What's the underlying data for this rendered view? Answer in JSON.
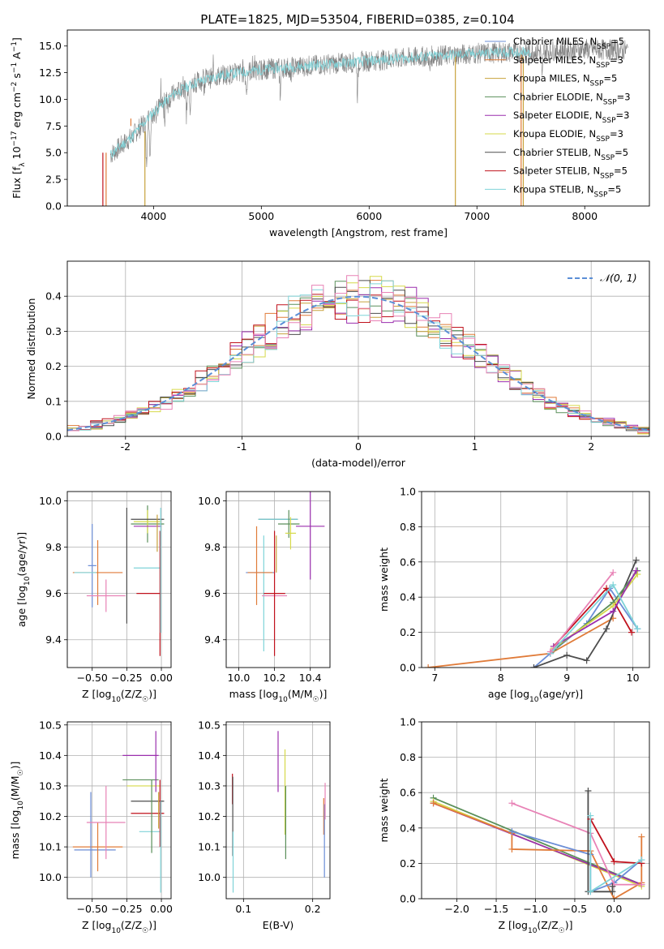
{
  "figure_title": "PLATE=1825, MJD=53504, FIBERID=0385, z=0.104",
  "colors": {
    "Chabrier MILES": "#6b8dd6",
    "Salpeter MILES": "#e07b39",
    "Kroupa MILES": "#c8a23c",
    "Chabrier ELODIE": "#5a8f5a",
    "Salpeter ELODIE": "#9b2fae",
    "Kroupa ELODIE": "#d6d94a",
    "Chabrier STELIB": "#4d4d4d",
    "Salpeter STELIB": "#c0121d",
    "Kroupa STELIB": "#7fd3d8",
    "pink": "#e882b6",
    "data": "#808080",
    "normal": "#5b8fd6"
  },
  "chart_data": [
    {
      "type": "line",
      "title": "PLATE=1825, MJD=53504, FIBERID=0385, z=0.104",
      "xlabel": "wavelength [Angstrom, rest frame]",
      "ylabel": "Flux [f_λ 10^-17 erg cm^-2 s^-1 A^-1]",
      "xlim": [
        3200,
        8600
      ],
      "ylim": [
        0,
        16.5
      ],
      "xticks": [
        4000,
        5000,
        6000,
        7000,
        8000
      ],
      "yticks": [
        0.0,
        2.5,
        5.0,
        7.5,
        10.0,
        12.5,
        15.0
      ],
      "legend_position": "right",
      "legend": [
        "Chabrier MILES, N_SSP=5",
        "Salpeter MILES, N_SSP=3",
        "Kroupa MILES, N_SSP=5",
        "Chabrier ELODIE, N_SSP=3",
        "Salpeter ELODIE, N_SSP=3",
        "Kroupa ELODIE, N_SSP=3",
        "Chabrier STELIB, N_SSP=5",
        "Salpeter STELIB, N_SSP=5",
        "Kroupa STELIB, N_SSP=5"
      ],
      "spectrum_continuum": {
        "wavelength": [
          3600,
          3800,
          4000,
          4200,
          4400,
          4600,
          4800,
          5000,
          5500,
          6000,
          6500,
          7000,
          7500,
          8000,
          8400
        ],
        "flux": [
          4.8,
          6.5,
          8.8,
          10.6,
          11.6,
          12.2,
          12.5,
          12.8,
          13.2,
          13.6,
          14.0,
          14.3,
          14.5,
          14.7,
          14.6
        ]
      }
    },
    {
      "type": "histogram",
      "xlabel": "(data-model)/error",
      "ylabel": "Normed distribution",
      "xlim": [
        -2.5,
        2.5
      ],
      "ylim": [
        0,
        0.5
      ],
      "xticks": [
        -2,
        -1,
        0,
        1,
        2
      ],
      "yticks": [
        0.0,
        0.1,
        0.2,
        0.3,
        0.4
      ],
      "legend_position": "top-right",
      "legend": [
        "N(0,1)"
      ],
      "bin_edges": [
        -2.5,
        -2.4,
        -2.3,
        -2.2,
        -2.1,
        -2.0,
        -1.9,
        -1.8,
        -1.7,
        -1.6,
        -1.5,
        -1.4,
        -1.3,
        -1.2,
        -1.1,
        -1.0,
        -0.9,
        -0.8,
        -0.7,
        -0.6,
        -0.5,
        -0.4,
        -0.3,
        -0.2,
        -0.1,
        0.0,
        0.1,
        0.2,
        0.3,
        0.4,
        0.5,
        0.6,
        0.7,
        0.8,
        0.9,
        1.0,
        1.1,
        1.2,
        1.3,
        1.4,
        1.5,
        1.6,
        1.7,
        1.8,
        1.9,
        2.0,
        2.1,
        2.2,
        2.3,
        2.4,
        2.5
      ]
    },
    {
      "type": "errorbar",
      "xlabel": "Z [log10(Z/Z☉)]",
      "ylabel": "age [log10(age/yr)]",
      "xlim": [
        -0.68,
        0.07
      ],
      "ylim": [
        9.28,
        10.04
      ],
      "xticks": [
        -0.5,
        -0.25,
        0.0
      ],
      "xtick_labels": [
        "−0.50",
        "−0.25",
        "0.00"
      ],
      "yticks": [
        9.4,
        9.6,
        9.8,
        10.0
      ],
      "points": [
        {
          "series": "Chabrier MILES",
          "x": -0.5,
          "xerr": 0.03,
          "y": 9.72,
          "yerr": 0.18
        },
        {
          "series": "Salpeter MILES",
          "x": -0.46,
          "xerr": 0.18,
          "y": 9.69,
          "yerr": 0.14
        },
        {
          "series": "Kroupa STELIB",
          "x": -0.55,
          "xerr": 0.08,
          "y": 9.69,
          "yerr": 0.0
        },
        {
          "series": "pink",
          "x": -0.4,
          "xerr": 0.14,
          "y": 9.59,
          "yerr": 0.07
        },
        {
          "series": "Chabrier STELIB",
          "x": -0.25,
          "xerr": 0.0,
          "y": 9.72,
          "yerr": 0.25
        },
        {
          "series": "Chabrier ELODIE",
          "x": -0.1,
          "xerr": 0.12,
          "y": 9.9,
          "yerr": 0.08
        },
        {
          "series": "Kroupa ELODIE",
          "x": -0.1,
          "xerr": 0.1,
          "y": 9.91,
          "yerr": 0.05
        },
        {
          "series": "Chabrier STELIB",
          "x": -0.1,
          "xerr": 0.12,
          "y": 9.92,
          "yerr": 0.0
        },
        {
          "series": "Salpeter ELODIE",
          "x": -0.1,
          "xerr": 0.1,
          "y": 9.89,
          "yerr": 0.0
        },
        {
          "series": "Kroupa STELIB",
          "x": -0.1,
          "xerr": 0.1,
          "y": 9.71,
          "yerr": 0.0
        },
        {
          "series": "Salpeter STELIB",
          "x": -0.09,
          "xerr": 0.09,
          "y": 9.6,
          "yerr": 0.0
        },
        {
          "series": "Kroupa MILES",
          "x": -0.03,
          "xerr": 0.0,
          "y": 9.86,
          "yerr": 0.08
        },
        {
          "series": "Salpeter STELIB",
          "x": -0.01,
          "xerr": 0.0,
          "y": 9.6,
          "yerr": 0.27
        },
        {
          "series": "Kroupa STELIB",
          "x": -0.005,
          "xerr": 0.0,
          "y": 9.7,
          "yerr": 0.27
        }
      ]
    },
    {
      "type": "errorbar",
      "xlabel": "mass [log10(M/M☉)]",
      "ylabel": "",
      "xlim": [
        9.93,
        10.51
      ],
      "ylim": [
        9.28,
        10.04
      ],
      "xticks": [
        10.0,
        10.2,
        10.4
      ],
      "xtick_labels": [
        "10.0",
        "10.2",
        "10.4"
      ],
      "yticks": [
        9.4,
        9.6,
        9.8,
        10.0
      ],
      "points": [
        {
          "series": "Kroupa STELIB",
          "x": 10.08,
          "xerr": 0.0,
          "y": 9.72,
          "yerr": 0.0
        },
        {
          "series": "Kroupa STELIB",
          "x": 10.14,
          "xerr": 0.0,
          "y": 9.6,
          "yerr": 0.25
        },
        {
          "series": "Salpeter MILES",
          "x": 10.1,
          "xerr": 0.0,
          "y": 9.72,
          "yerr": 0.17
        },
        {
          "series": "Chabrier MILES",
          "x": 10.12,
          "xerr": 0.08,
          "y": 9.69,
          "yerr": 0.0
        },
        {
          "series": "Salpeter MILES",
          "x": 10.12,
          "xerr": 0.07,
          "y": 9.69,
          "yerr": 0.0
        },
        {
          "series": "pink",
          "x": 10.2,
          "xerr": 0.07,
          "y": 9.59,
          "yerr": 0.0
        },
        {
          "series": "Salpeter STELIB",
          "x": 10.2,
          "xerr": 0.06,
          "y": 9.6,
          "yerr": 0.27
        },
        {
          "series": "Kroupa MILES",
          "x": 10.21,
          "xerr": 0.0,
          "y": 9.77,
          "yerr": 0.08
        },
        {
          "series": "Chabrier STELIB",
          "x": 10.22,
          "xerr": 0.11,
          "y": 9.92,
          "yerr": 0.0
        },
        {
          "series": "Kroupa STELIB",
          "x": 10.22,
          "xerr": 0.11,
          "y": 9.92,
          "yerr": 0.0
        },
        {
          "series": "Chabrier ELODIE",
          "x": 10.28,
          "xerr": 0.06,
          "y": 9.9,
          "yerr": 0.06
        },
        {
          "series": "Kroupa ELODIE",
          "x": 10.29,
          "xerr": 0.03,
          "y": 9.86,
          "yerr": 0.07
        },
        {
          "series": "Salpeter ELODIE",
          "x": 10.4,
          "xerr": 0.08,
          "y": 9.89,
          "yerr": 0.23
        }
      ]
    },
    {
      "type": "line",
      "xlabel": "age  [log10(age/yr)]",
      "ylabel": "mass weight",
      "xlim": [
        6.8,
        10.25
      ],
      "ylim": [
        0,
        1.0
      ],
      "xticks": [
        7,
        8,
        9,
        10
      ],
      "yticks": [
        0.0,
        0.2,
        0.4,
        0.6,
        0.8,
        1.0
      ],
      "series": [
        {
          "name": "Salpeter MILES",
          "x": [
            6.9,
            8.75,
            9.7
          ],
          "y": [
            0.0,
            0.08,
            0.28
          ]
        },
        {
          "name": "Chabrier MILES",
          "x": [
            8.5,
            8.75,
            9.3,
            9.65,
            10.07
          ],
          "y": [
            0.0,
            0.08,
            0.25,
            0.45,
            0.22
          ]
        },
        {
          "name": "Chabrier STELIB",
          "x": [
            8.5,
            9.0,
            9.3,
            9.6,
            10.05
          ],
          "y": [
            0.0,
            0.07,
            0.04,
            0.22,
            0.61
          ]
        },
        {
          "name": "Salpeter STELIB",
          "x": [
            8.8,
            9.6,
            9.98
          ],
          "y": [
            0.12,
            0.45,
            0.2
          ]
        },
        {
          "name": "Chabrier ELODIE",
          "x": [
            8.8,
            9.7,
            10.07
          ],
          "y": [
            0.1,
            0.37,
            0.55
          ]
        },
        {
          "name": "Kroupa ELODIE",
          "x": [
            8.8,
            9.7,
            10.07
          ],
          "y": [
            0.11,
            0.35,
            0.53
          ]
        },
        {
          "name": "Salpeter ELODIE",
          "x": [
            8.8,
            9.7,
            10.05
          ],
          "y": [
            0.12,
            0.32,
            0.55
          ]
        },
        {
          "name": "Kroupa STELIB",
          "x": [
            8.75,
            9.7,
            10.07
          ],
          "y": [
            0.08,
            0.47,
            0.22
          ]
        },
        {
          "name": "pink",
          "x": [
            8.75,
            9.7
          ],
          "y": [
            0.09,
            0.54
          ]
        }
      ]
    },
    {
      "type": "errorbar",
      "xlabel": "Z [log10(Z/Z☉)]",
      "ylabel": "mass [log10(M/M☉)]",
      "xlim": [
        -0.68,
        0.07
      ],
      "ylim": [
        9.93,
        10.51
      ],
      "xticks": [
        -0.5,
        -0.25,
        0.0
      ],
      "xtick_labels": [
        "−0.50",
        "−0.25",
        "0.00"
      ],
      "yticks": [
        10.0,
        10.1,
        10.2,
        10.3,
        10.4,
        10.5
      ],
      "points": [
        {
          "series": "Chabrier MILES",
          "x": -0.48,
          "xerr": 0.15,
          "y": 10.09,
          "yerr": 0.0
        },
        {
          "series": "Salpeter MILES",
          "x": -0.46,
          "xerr": 0.18,
          "y": 10.1,
          "yerr": 0.08
        },
        {
          "series": "Chabrier MILES",
          "x": -0.51,
          "xerr": 0.0,
          "y": 10.14,
          "yerr": 0.14
        },
        {
          "series": "pink",
          "x": -0.4,
          "xerr": 0.14,
          "y": 10.18,
          "yerr": 0.12
        },
        {
          "series": "Salpeter ELODIE",
          "x": -0.15,
          "xerr": 0.13,
          "y": 10.4,
          "yerr": 0.0
        },
        {
          "series": "Chabrier ELODIE",
          "x": -0.15,
          "xerr": 0.13,
          "y": 10.32,
          "yerr": 0.0
        },
        {
          "series": "Kroupa ELODIE",
          "x": -0.13,
          "xerr": 0.12,
          "y": 10.3,
          "yerr": 0.0
        },
        {
          "series": "Chabrier STELIB",
          "x": -0.1,
          "xerr": 0.12,
          "y": 10.25,
          "yerr": 0.0
        },
        {
          "series": "Salpeter STELIB",
          "x": -0.1,
          "xerr": 0.12,
          "y": 10.21,
          "yerr": 0.0
        },
        {
          "series": "Kroupa STELIB",
          "x": -0.08,
          "xerr": 0.08,
          "y": 10.15,
          "yerr": 0.0
        },
        {
          "series": "Chabrier ELODIE",
          "x": -0.07,
          "xerr": 0.0,
          "y": 10.2,
          "yerr": 0.12
        },
        {
          "series": "Salpeter ELODIE",
          "x": -0.04,
          "xerr": 0.0,
          "y": 10.38,
          "yerr": 0.1
        },
        {
          "series": "Kroupa MILES",
          "x": -0.02,
          "xerr": 0.0,
          "y": 10.22,
          "yerr": 0.06
        },
        {
          "series": "Salpeter STELIB",
          "x": -0.01,
          "xerr": 0.0,
          "y": 10.21,
          "yerr": 0.11
        },
        {
          "series": "Kroupa STELIB",
          "x": -0.005,
          "xerr": 0.0,
          "y": 10.1,
          "yerr": 0.15
        }
      ]
    },
    {
      "type": "errorbar",
      "xlabel": "E(B-V)",
      "ylabel": "",
      "xlim": [
        0.075,
        0.225
      ],
      "ylim": [
        9.93,
        10.51
      ],
      "xticks": [
        0.1,
        0.2
      ],
      "xtick_labels": [
        "0.1",
        "0.2"
      ],
      "yticks": [
        10.0,
        10.1,
        10.2,
        10.3,
        10.4,
        10.5
      ],
      "points": [
        {
          "series": "Salpeter STELIB",
          "x": 0.084,
          "xerr": 0.0,
          "y": 10.29,
          "yerr": 0.05
        },
        {
          "series": "Chabrier STELIB",
          "x": 0.0845,
          "xerr": 0.0,
          "y": 10.2,
          "yerr": 0.13
        },
        {
          "series": "Kroupa STELIB",
          "x": 0.085,
          "xerr": 0.0,
          "y": 10.05,
          "yerr": 0.1
        },
        {
          "series": "Salpeter ELODIE",
          "x": 0.15,
          "xerr": 0.0,
          "y": 10.38,
          "yerr": 0.1
        },
        {
          "series": "Kroupa ELODIE",
          "x": 0.16,
          "xerr": 0.0,
          "y": 10.28,
          "yerr": 0.14
        },
        {
          "series": "Chabrier ELODIE",
          "x": 0.161,
          "xerr": 0.0,
          "y": 10.18,
          "yerr": 0.12
        },
        {
          "series": "Salpeter MILES",
          "x": 0.216,
          "xerr": 0.0,
          "y": 10.2,
          "yerr": 0.06
        },
        {
          "series": "Chabrier MILES",
          "x": 0.217,
          "xerr": 0.0,
          "y": 10.12,
          "yerr": 0.12
        },
        {
          "series": "pink",
          "x": 0.218,
          "xerr": 0.0,
          "y": 10.25,
          "yerr": 0.06
        }
      ]
    },
    {
      "type": "line",
      "xlabel": "Z [log10(Z/Z☉)]",
      "ylabel": "mass weight",
      "xlim": [
        -2.45,
        0.45
      ],
      "ylim": [
        0,
        1.0
      ],
      "xticks": [
        -2.0,
        -1.5,
        -1.0,
        -0.5,
        0.0
      ],
      "xtick_labels": [
        "−2.0",
        "−1.5",
        "−1.0",
        "−0.5",
        "0.0"
      ],
      "yticks": [
        0.0,
        0.2,
        0.4,
        0.6,
        0.8,
        1.0
      ],
      "series": [
        {
          "name": "Chabrier ELODIE",
          "x": [
            -2.3,
            0.35
          ],
          "y": [
            0.57,
            0.08
          ]
        },
        {
          "name": "Kroupa ELODIE",
          "x": [
            -2.3,
            0.35
          ],
          "y": [
            0.55,
            0.07
          ]
        },
        {
          "name": "Salpeter ELODIE",
          "x": [
            -2.3,
            0.35
          ],
          "y": [
            0.54,
            0.08
          ]
        },
        {
          "name": "Salpeter MILES",
          "x": [
            -2.3,
            -1.3,
            -1.3,
            -0.3,
            0.0,
            0.35,
            0.35
          ],
          "y": [
            0.54,
            0.37,
            0.28,
            0.27,
            0.0,
            0.09,
            0.35
          ]
        },
        {
          "name": "Chabrier MILES",
          "x": [
            -1.3,
            -0.3,
            -0.3,
            0.0,
            0.35
          ],
          "y": [
            0.38,
            0.25,
            0.04,
            0.09,
            0.22
          ]
        },
        {
          "name": "pink",
          "x": [
            -1.3,
            -0.3,
            0.0,
            0.35
          ],
          "y": [
            0.54,
            0.37,
            0.08,
            0.08
          ]
        },
        {
          "name": "Chabrier STELIB",
          "x": [
            -0.33,
            -0.33,
            -0.02,
            -0.02
          ],
          "y": [
            0.61,
            0.04,
            0.04,
            0.07
          ]
        },
        {
          "name": "Salpeter STELIB",
          "x": [
            -0.3,
            0.0,
            0.35
          ],
          "y": [
            0.45,
            0.21,
            0.2
          ]
        },
        {
          "name": "Kroupa STELIB",
          "x": [
            -0.3,
            -0.3,
            0.35
          ],
          "y": [
            0.47,
            0.04,
            0.22
          ]
        }
      ]
    }
  ]
}
